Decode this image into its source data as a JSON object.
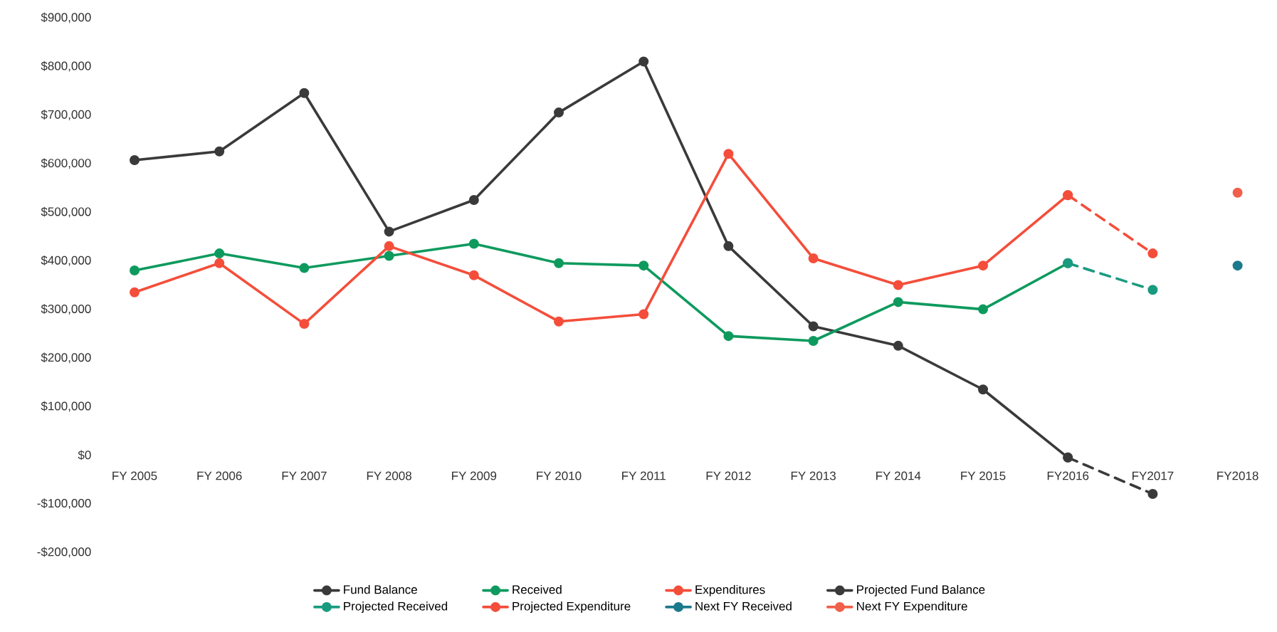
{
  "chart_data": {
    "type": "line",
    "categories": [
      "FY 2005",
      "FY 2006",
      "FY 2007",
      "FY 2008",
      "FY 2009",
      "FY 2010",
      "FY 2011",
      "FY 2012",
      "FY 2013",
      "FY 2014",
      "FY 2015",
      "FY2016",
      "FY2017",
      "FY2018"
    ],
    "series": [
      {
        "name": "Fund Balance",
        "color": "#3a3a3a",
        "values": [
          607000,
          625000,
          745000,
          460000,
          525000,
          705000,
          810000,
          430000,
          265000,
          225000,
          135000,
          -5000,
          null,
          null
        ]
      },
      {
        "name": "Received",
        "color": "#0e9a5e",
        "values": [
          380000,
          415000,
          385000,
          410000,
          435000,
          395000,
          390000,
          245000,
          235000,
          315000,
          300000,
          395000,
          null,
          null
        ]
      },
      {
        "name": "Expenditures",
        "color": "#f44e3b",
        "values": [
          335000,
          395000,
          270000,
          430000,
          370000,
          275000,
          290000,
          620000,
          405000,
          350000,
          390000,
          535000,
          null,
          null
        ]
      },
      {
        "name": "Projected Fund Balance",
        "color": "#3a3a3a",
        "line_style": "dashed",
        "values": [
          null,
          null,
          null,
          null,
          null,
          null,
          null,
          null,
          null,
          null,
          null,
          -5000,
          -80000,
          null
        ]
      },
      {
        "name": "Projected Received",
        "color": "#1a9b80",
        "line_style": "dashed",
        "values": [
          null,
          null,
          null,
          null,
          null,
          null,
          null,
          null,
          null,
          null,
          null,
          395000,
          340000,
          null
        ]
      },
      {
        "name": "Projected Expenditure",
        "color": "#f44e3b",
        "line_style": "dashed",
        "values": [
          null,
          null,
          null,
          null,
          null,
          null,
          null,
          null,
          null,
          null,
          null,
          535000,
          415000,
          null
        ]
      },
      {
        "name": "Next FY Received",
        "color": "#1b7a8c",
        "values": [
          null,
          null,
          null,
          null,
          null,
          null,
          null,
          null,
          null,
          null,
          null,
          null,
          null,
          390000
        ]
      },
      {
        "name": "Next FY Expenditure",
        "color": "#f0604a",
        "values": [
          null,
          null,
          null,
          null,
          null,
          null,
          null,
          null,
          null,
          null,
          null,
          null,
          null,
          540000
        ]
      }
    ],
    "ylim": [
      -200000,
      900000
    ],
    "yticks": [
      {
        "value": -200000,
        "label": "-$200,000"
      },
      {
        "value": -100000,
        "label": "-$100,000"
      },
      {
        "value": 0,
        "label": "$0"
      },
      {
        "value": 100000,
        "label": "$100,000"
      },
      {
        "value": 200000,
        "label": "$200,000"
      },
      {
        "value": 300000,
        "label": "$300,000"
      },
      {
        "value": 400000,
        "label": "$400,000"
      },
      {
        "value": 500000,
        "label": "$500,000"
      },
      {
        "value": 600000,
        "label": "$600,000"
      },
      {
        "value": 700000,
        "label": "$700,000"
      },
      {
        "value": 800000,
        "label": "$800,000"
      },
      {
        "value": 900000,
        "label": "$900,000"
      }
    ],
    "grid": false,
    "legend": "bottom",
    "marker": "circle",
    "line_style": "solid"
  }
}
